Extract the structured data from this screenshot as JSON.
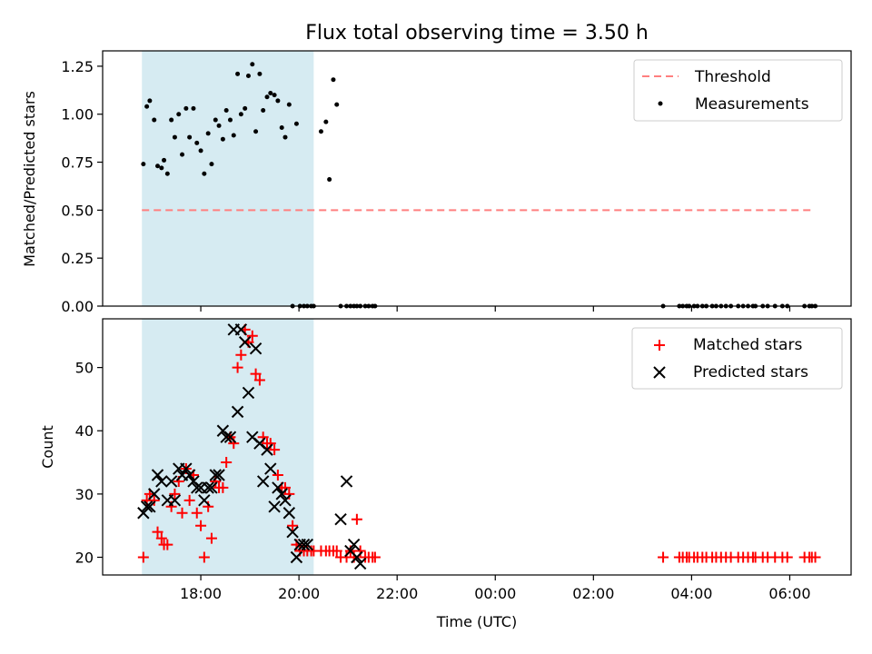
{
  "chart_data": [
    {
      "type": "scatter",
      "title": "Flux total observing time = 3.50 h",
      "xlabel": "",
      "ylabel": "Matched/Predicted stars",
      "xlim": [
        16.0,
        31.25
      ],
      "ylim": [
        0.0,
        1.33
      ],
      "yticks": [
        "0.00",
        "0.25",
        "0.50",
        "0.75",
        "1.00",
        "1.25"
      ],
      "grid": false,
      "legend": "upper right",
      "shaded_span": [
        16.8,
        20.3
      ],
      "colors": {
        "shade": "#add8e6",
        "threshold": "#ff7f7f",
        "points": "#000000"
      },
      "threshold": {
        "name": "Threshold",
        "y": 0.5,
        "x": [
          16.8,
          30.5
        ]
      },
      "series": [
        {
          "name": "Measurements",
          "x": [
            16.83,
            16.9,
            16.96,
            17.05,
            17.12,
            17.2,
            17.25,
            17.32,
            17.4,
            17.47,
            17.55,
            17.62,
            17.7,
            17.77,
            17.85,
            17.92,
            18.0,
            18.07,
            18.15,
            18.22,
            18.3,
            18.37,
            18.45,
            18.52,
            18.6,
            18.67,
            18.75,
            18.82,
            18.9,
            18.97,
            19.05,
            19.12,
            19.2,
            19.27,
            19.35,
            19.42,
            19.5,
            19.57,
            19.65,
            19.72,
            19.8,
            19.87,
            19.95,
            20.02,
            20.1,
            20.17,
            20.25,
            20.3,
            20.45,
            20.55,
            20.62,
            20.7,
            20.77,
            20.85,
            20.97,
            21.05,
            21.12,
            21.18,
            21.25,
            21.35,
            21.42,
            21.5,
            21.55,
            27.42,
            27.75,
            27.82,
            27.9,
            27.95,
            28.05,
            28.12,
            28.22,
            28.3,
            28.42,
            28.5,
            28.6,
            28.7,
            28.8,
            28.95,
            29.05,
            29.15,
            29.25,
            29.3,
            29.45,
            29.55,
            29.7,
            29.85,
            29.95,
            30.3,
            30.4,
            30.45,
            30.52
          ],
          "y": [
            0.74,
            1.04,
            1.07,
            0.97,
            0.73,
            0.72,
            0.76,
            0.69,
            0.97,
            0.88,
            1.0,
            0.79,
            1.03,
            0.88,
            1.03,
            0.85,
            0.81,
            0.69,
            0.9,
            0.74,
            0.97,
            0.94,
            0.87,
            1.02,
            0.97,
            0.89,
            1.21,
            1.0,
            1.03,
            1.2,
            1.26,
            0.91,
            1.21,
            1.02,
            1.09,
            1.11,
            1.1,
            1.07,
            0.93,
            0.88,
            1.05,
            0.0,
            0.95,
            0.0,
            0.0,
            0.0,
            0.0,
            0.0,
            0.91,
            0.96,
            0.66,
            1.18,
            1.05,
            0.0,
            0.0,
            0.0,
            0.0,
            0.0,
            0.0,
            0.0,
            0.0,
            0.0,
            0.0,
            0.0,
            0.0,
            0.0,
            0.0,
            0.0,
            0.0,
            0.0,
            0.0,
            0.0,
            0.0,
            0.0,
            0.0,
            0.0,
            0.0,
            0.0,
            0.0,
            0.0,
            0.0,
            0.0,
            0.0,
            0.0,
            0.0,
            0.0,
            0.0,
            0.0,
            0.0,
            0.0,
            0.0
          ]
        }
      ]
    },
    {
      "type": "scatter",
      "title": "",
      "xlabel": "Time (UTC)",
      "ylabel": "Count",
      "xlim": [
        16.0,
        31.25
      ],
      "ylim": [
        17.2,
        57.7
      ],
      "yticks": [
        "20",
        "30",
        "40",
        "50"
      ],
      "xticks": [
        "18:00",
        "20:00",
        "22:00",
        "00:00",
        "02:00",
        "04:00",
        "06:00"
      ],
      "grid": false,
      "legend": "upper right",
      "shaded_span": [
        16.8,
        20.3
      ],
      "colors": {
        "shade": "#add8e6",
        "matched": "#ff0000",
        "predicted": "#000000"
      },
      "series": [
        {
          "name": "Matched stars",
          "x": [
            16.83,
            16.9,
            16.96,
            17.05,
            17.12,
            17.2,
            17.25,
            17.32,
            17.4,
            17.47,
            17.55,
            17.62,
            17.7,
            17.77,
            17.85,
            17.92,
            18.0,
            18.07,
            18.15,
            18.22,
            18.3,
            18.37,
            18.45,
            18.52,
            18.6,
            18.67,
            18.75,
            18.82,
            18.9,
            18.97,
            19.05,
            19.12,
            19.2,
            19.27,
            19.35,
            19.42,
            19.5,
            19.57,
            19.65,
            19.72,
            19.8,
            19.87,
            19.95,
            20.02,
            20.1,
            20.17,
            20.25,
            20.3,
            20.45,
            20.55,
            20.62,
            20.7,
            20.77,
            20.85,
            20.97,
            21.05,
            21.12,
            21.18,
            21.25,
            21.35,
            21.42,
            21.5,
            21.55,
            27.42,
            27.75,
            27.82,
            27.9,
            27.95,
            28.05,
            28.12,
            28.22,
            28.3,
            28.42,
            28.5,
            28.6,
            28.7,
            28.8,
            28.95,
            29.05,
            29.15,
            29.25,
            29.3,
            29.45,
            29.55,
            29.7,
            29.85,
            29.95,
            30.3,
            30.4,
            30.45,
            30.52
          ],
          "y": [
            20,
            29,
            30,
            29,
            24,
            23,
            22,
            22,
            28,
            30,
            32,
            27,
            34,
            29,
            33,
            27,
            25,
            20,
            28,
            23,
            32,
            31,
            31,
            35,
            39,
            38,
            50,
            52,
            56,
            54,
            55,
            49,
            48,
            39,
            38,
            38,
            37,
            33,
            31,
            31,
            30,
            25,
            22,
            21,
            21,
            21,
            21,
            21,
            21,
            21,
            21,
            21,
            21,
            20,
            20,
            21,
            20,
            26,
            21,
            20,
            20,
            20,
            20,
            20,
            20,
            20,
            20,
            20,
            20,
            20,
            20,
            20,
            20,
            20,
            20,
            20,
            20,
            20,
            20,
            20,
            20,
            20,
            20,
            20,
            20,
            20,
            20,
            20,
            20,
            20,
            20
          ]
        },
        {
          "name": "Predicted stars",
          "x": [
            16.83,
            16.9,
            16.96,
            17.05,
            17.12,
            17.2,
            17.32,
            17.4,
            17.47,
            17.55,
            17.62,
            17.7,
            17.77,
            17.85,
            17.92,
            18.0,
            18.07,
            18.15,
            18.22,
            18.3,
            18.37,
            18.45,
            18.52,
            18.6,
            18.67,
            18.75,
            18.82,
            18.9,
            18.97,
            19.05,
            19.12,
            19.2,
            19.27,
            19.35,
            19.42,
            19.5,
            19.57,
            19.65,
            19.72,
            19.8,
            19.87,
            19.95,
            20.02,
            20.1,
            20.17,
            20.85,
            20.97,
            21.05,
            21.12,
            21.18,
            21.25
          ],
          "y": [
            27,
            28,
            28,
            30,
            33,
            32,
            29,
            32,
            29,
            34,
            33,
            34,
            33,
            32,
            31,
            31,
            29,
            31,
            31,
            33,
            33,
            40,
            39,
            39,
            56,
            43,
            56,
            54,
            46,
            39,
            53,
            38,
            32,
            37,
            34,
            28,
            31,
            30,
            29,
            27,
            24,
            20,
            22,
            22,
            22,
            26,
            32,
            21,
            22,
            20,
            19
          ]
        }
      ]
    }
  ]
}
